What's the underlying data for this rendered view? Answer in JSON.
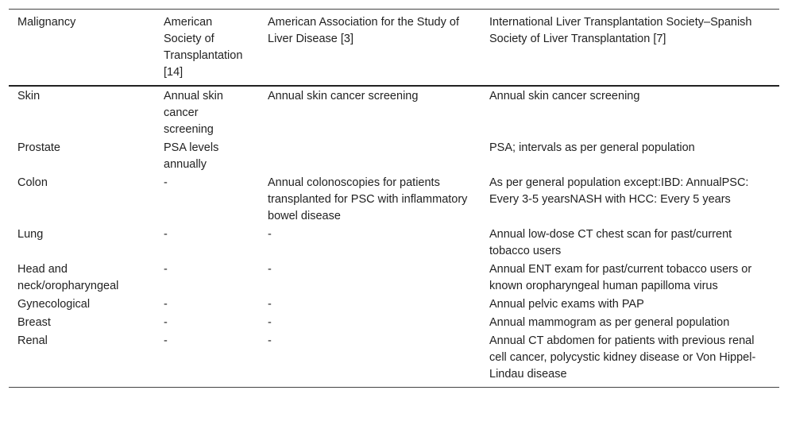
{
  "table": {
    "header": [
      "Malignancy",
      "American Society of Transplantation [14]",
      "American Association for the Study of Liver Disease [3]",
      "International Liver Transplantation Society–Spanish Society of Liver Transplantation [7]"
    ],
    "rows": [
      [
        "Skin",
        "Annual skin cancer screening",
        "Annual skin cancer screening",
        "Annual skin cancer screening"
      ],
      [
        "Prostate",
        "PSA levels annually",
        null,
        "PSA; intervals as per general population"
      ],
      [
        "Colon",
        "-",
        "Annual colonoscopies for patients transplanted for PSC with inflammatory bowel disease",
        "As per general population except:IBD: AnnualPSC: Every 3-5 yearsNASH with HCC: Every 5 years"
      ],
      [
        "Lung",
        "-",
        "-",
        "Annual low-dose CT chest scan for past/current tobacco users"
      ],
      [
        "Head and neck/oropharyngeal",
        "-",
        "-",
        "Annual ENT exam for past/current tobacco users or known oropharyngeal human papilloma virus"
      ],
      [
        "Gynecological",
        "-",
        "-",
        "Annual pelvic exams with PAP"
      ],
      [
        "Breast",
        "-",
        "-",
        "Annual mammogram as per general population"
      ],
      [
        "Renal",
        "-",
        "-",
        "Annual CT abdomen for patients with previous renal cell cancer, polycystic kidney disease or Von Hippel-Lindau disease"
      ]
    ]
  }
}
